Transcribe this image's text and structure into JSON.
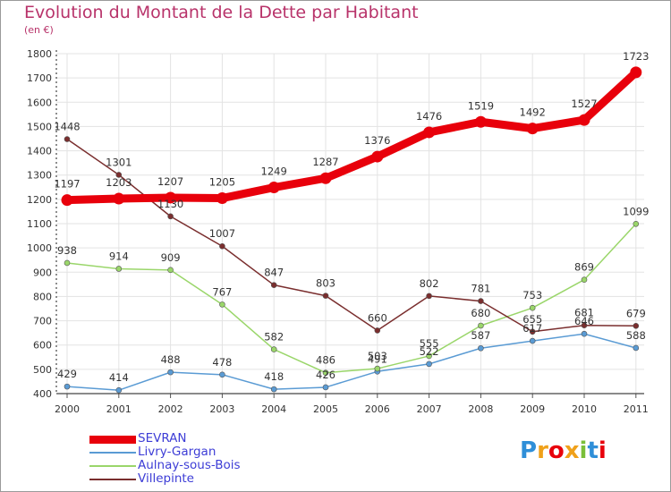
{
  "chart_data": {
    "type": "line",
    "title": "Evolution du Montant de la Dette par Habitant",
    "subtitle": "(en €)",
    "categories": [
      "2000",
      "2001",
      "2002",
      "2003",
      "2004",
      "2005",
      "2006",
      "2007",
      "2008",
      "2009",
      "2010",
      "2011"
    ],
    "ylim": [
      400,
      1800
    ],
    "yticks": [
      400,
      500,
      600,
      700,
      800,
      900,
      1000,
      1100,
      1200,
      1300,
      1400,
      1500,
      1600,
      1700,
      1800
    ],
    "series": [
      {
        "name": "SEVRAN",
        "color": "#e8000b",
        "values": [
          1197,
          1203,
          1207,
          1205,
          1249,
          1287,
          1376,
          1476,
          1519,
          1492,
          1527,
          1723
        ]
      },
      {
        "name": "Livry-Gargan",
        "color": "#5a9bd4",
        "values": [
          429,
          414,
          488,
          478,
          418,
          426,
          491,
          522,
          587,
          617,
          646,
          588
        ]
      },
      {
        "name": "Aulnay-sous-Bois",
        "color": "#9ad66a",
        "values": [
          938,
          914,
          909,
          767,
          582,
          486,
          503,
          555,
          680,
          753,
          869,
          1099
        ]
      },
      {
        "name": "Villepinte",
        "color": "#7a2e2e",
        "values": [
          1448,
          1301,
          1130,
          1007,
          847,
          803,
          660,
          802,
          781,
          655,
          681,
          679
        ]
      }
    ],
    "labels": {
      "SEVRAN": [
        "1197",
        "1203",
        "1207",
        "1205",
        "1249",
        "1287",
        "1376",
        "1476",
        "1519",
        "1492",
        "1527",
        "1723"
      ],
      "Livry-Gargan": [
        "429",
        "414",
        "488",
        "478",
        "418",
        "426",
        "491",
        "522",
        "587",
        "617",
        "646",
        "588"
      ],
      "Aulnay-sous-Bois": [
        "938",
        "914",
        "909",
        "767",
        "582",
        "486",
        "503",
        "555",
        "680",
        "753",
        "869",
        "1099"
      ],
      "Villepinte": [
        "1448",
        "1301",
        "1130",
        "1007",
        "847",
        "803",
        "660",
        "802",
        "781",
        "655",
        "681",
        "679"
      ]
    }
  },
  "legend": {
    "items": [
      "SEVRAN",
      "Livry-Gargan",
      "Aulnay-sous-Bois",
      "Villepinte"
    ]
  },
  "logo": {
    "letters": [
      "P",
      "r",
      "o",
      "x",
      "i",
      "t",
      "i"
    ],
    "colors": [
      "#2f8fd8",
      "#f0a11a",
      "#e8000b",
      "#f0a11a",
      "#7abf3a",
      "#2f8fd8",
      "#e8000b"
    ]
  }
}
